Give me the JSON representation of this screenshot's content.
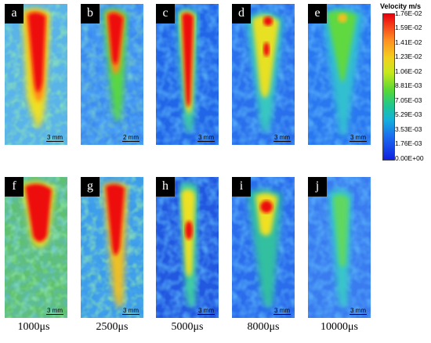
{
  "legend": {
    "title": "Velocity m/s",
    "ticks": [
      "1.76E-02",
      "1.59E-02",
      "1.41E-02",
      "1.23E-02",
      "1.06E-02",
      "8.81E-03",
      "7.05E-03",
      "5.29E-03",
      "3.53E-03",
      "1.76E-03",
      "0.00E+00"
    ]
  },
  "panels": [
    {
      "label": "a",
      "scale": "3 mm"
    },
    {
      "label": "b",
      "scale": "2 mm"
    },
    {
      "label": "c",
      "scale": "3 mm"
    },
    {
      "label": "d",
      "scale": "3 mm"
    },
    {
      "label": "e",
      "scale": "3 mm"
    },
    {
      "label": "f",
      "scale": "3 mm"
    },
    {
      "label": "g",
      "scale": "3 mm"
    },
    {
      "label": "h",
      "scale": "3 mm"
    },
    {
      "label": "i",
      "scale": "3 mm"
    },
    {
      "label": "j",
      "scale": "3 mm"
    }
  ],
  "times": [
    "1000μs",
    "2500μs",
    "5000μs",
    "8000μs",
    "10000μs"
  ]
}
